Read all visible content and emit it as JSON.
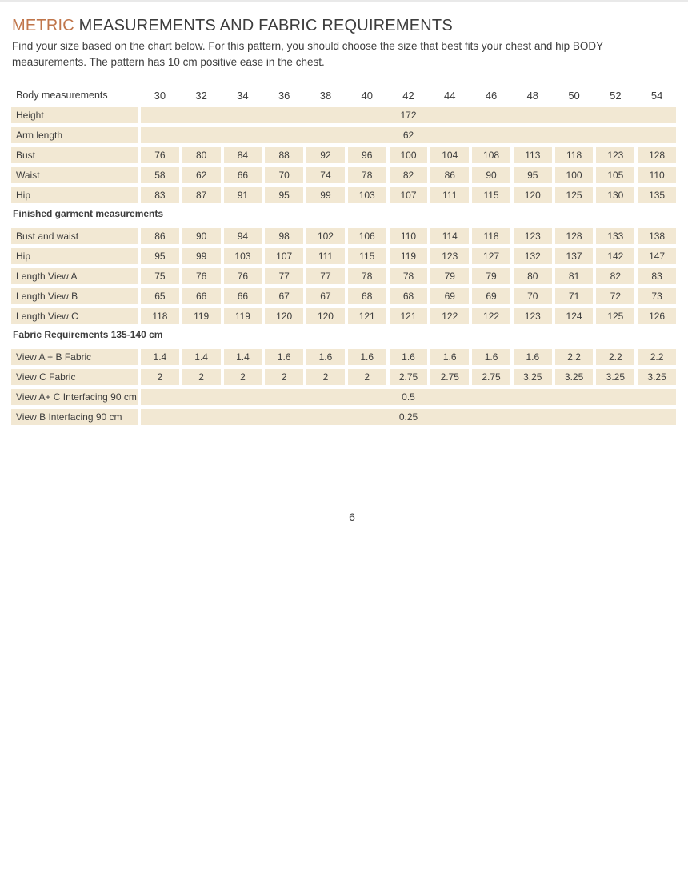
{
  "page": {
    "title_highlight": "METRIC",
    "title_rest": " MEASUREMENTS AND FABRIC REQUIREMENTS",
    "intro": "Find your size based on the chart below. For this pattern, you should choose the size that best fits your chest and hip BODY measurements. The pattern has 10 cm positive ease in the chest.",
    "page_number": "6"
  },
  "colors": {
    "accent": "#c0754a",
    "cell_background": "#f2e8d3",
    "text": "#3d3d3d"
  },
  "table": {
    "header_label": "Body measurements",
    "sizes": [
      "30",
      "32",
      "34",
      "36",
      "38",
      "40",
      "42",
      "44",
      "46",
      "48",
      "50",
      "52",
      "54"
    ],
    "rows": [
      {
        "type": "span",
        "label": "Height",
        "value": "172"
      },
      {
        "type": "span",
        "label": "Arm length",
        "value": "62"
      },
      {
        "type": "cells",
        "label": "Bust",
        "values": [
          "76",
          "80",
          "84",
          "88",
          "92",
          "96",
          "100",
          "104",
          "108",
          "113",
          "118",
          "123",
          "128"
        ]
      },
      {
        "type": "cells",
        "label": "Waist",
        "values": [
          "58",
          "62",
          "66",
          "70",
          "74",
          "78",
          "82",
          "86",
          "90",
          "95",
          "100",
          "105",
          "110"
        ]
      },
      {
        "type": "cells",
        "label": "Hip",
        "values": [
          "83",
          "87",
          "91",
          "95",
          "99",
          "103",
          "107",
          "111",
          "115",
          "120",
          "125",
          "130",
          "135"
        ]
      },
      {
        "type": "section",
        "label": "Finished garment measurements"
      },
      {
        "type": "cells",
        "label": "Bust and waist",
        "values": [
          "86",
          "90",
          "94",
          "98",
          "102",
          "106",
          "110",
          "114",
          "118",
          "123",
          "128",
          "133",
          "138"
        ]
      },
      {
        "type": "cells",
        "label": "Hip",
        "values": [
          "95",
          "99",
          "103",
          "107",
          "111",
          "115",
          "119",
          "123",
          "127",
          "132",
          "137",
          "142",
          "147"
        ]
      },
      {
        "type": "cells",
        "label": "Length View A",
        "values": [
          "75",
          "76",
          "76",
          "77",
          "77",
          "78",
          "78",
          "79",
          "79",
          "80",
          "81",
          "82",
          "83"
        ]
      },
      {
        "type": "cells",
        "label": "Length View B",
        "values": [
          "65",
          "66",
          "66",
          "67",
          "67",
          "68",
          "68",
          "69",
          "69",
          "70",
          "71",
          "72",
          "73"
        ]
      },
      {
        "type": "cells",
        "label": "Length View C",
        "values": [
          "118",
          "119",
          "119",
          "120",
          "120",
          "121",
          "121",
          "122",
          "122",
          "123",
          "124",
          "125",
          "126"
        ]
      },
      {
        "type": "section",
        "label": "Fabric Requirements  135-140 cm"
      },
      {
        "type": "cells",
        "label": "View A + B Fabric",
        "values": [
          "1.4",
          "1.4",
          "1.4",
          "1.6",
          "1.6",
          "1.6",
          "1.6",
          "1.6",
          "1.6",
          "1.6",
          "2.2",
          "2.2",
          "2.2"
        ]
      },
      {
        "type": "cells",
        "label": "View C Fabric",
        "values": [
          "2",
          "2",
          "2",
          "2",
          "2",
          "2",
          "2.75",
          "2.75",
          "2.75",
          "3.25",
          "3.25",
          "3.25",
          "3.25"
        ]
      },
      {
        "type": "span",
        "label": "View A+ C Interfacing 90 cm",
        "value": "0.5"
      },
      {
        "type": "span",
        "label": "View B Interfacing 90 cm",
        "value": "0.25"
      }
    ]
  }
}
